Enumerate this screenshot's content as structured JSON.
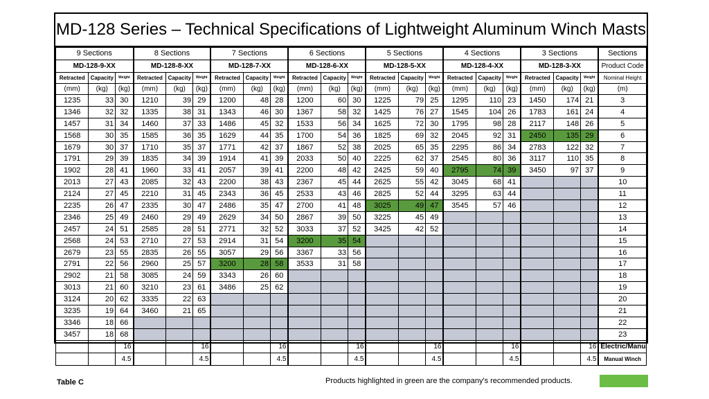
{
  "title": "MD-128 Series – Technical Specifications of Lightweight Aluminum Winch Masts",
  "groups": [
    {
      "label": "9 Sections",
      "code": "MD-128-9-XX"
    },
    {
      "label": "8 Sections",
      "code": "MD-128-8-XX"
    },
    {
      "label": "7 Sections",
      "code": "MD-128-7-XX"
    },
    {
      "label": "6 Sections",
      "code": "MD-128-6-XX"
    },
    {
      "label": "5 Sections",
      "code": "MD-128-5-XX"
    },
    {
      "label": "4 Sections",
      "code": "MD-128-4-XX"
    },
    {
      "label": "3 Sections",
      "code": "MD-128-3-XX"
    }
  ],
  "sub_headers": {
    "retracted": "Retracted",
    "capacity": "Capacity",
    "weight": "Weight"
  },
  "units": {
    "retracted": "(mm)",
    "capacity": "(kg)",
    "weight": "(kg)"
  },
  "right_column": {
    "sections": "Sections",
    "product_code": "Product Code",
    "nominal_height": "Nominal Height",
    "unit": "(m)"
  },
  "heights": [
    "3",
    "4",
    "5",
    "6",
    "7",
    "8",
    "9",
    "10",
    "11",
    "12",
    "13",
    "14",
    "15",
    "16",
    "17",
    "18",
    "19",
    "20",
    "21",
    "22",
    "23"
  ],
  "data": [
    [
      [
        "1235",
        "33",
        "30"
      ],
      [
        "1346",
        "32",
        "32"
      ],
      [
        "1457",
        "31",
        "34"
      ],
      [
        "1568",
        "30",
        "35"
      ],
      [
        "1679",
        "30",
        "37"
      ],
      [
        "1791",
        "29",
        "39"
      ],
      [
        "1902",
        "28",
        "41"
      ],
      [
        "2013",
        "27",
        "43"
      ],
      [
        "2124",
        "27",
        "45"
      ],
      [
        "2235",
        "26",
        "47"
      ],
      [
        "2346",
        "25",
        "49"
      ],
      [
        "2457",
        "24",
        "51"
      ],
      [
        "2568",
        "24",
        "53"
      ],
      [
        "2679",
        "23",
        "55"
      ],
      [
        "2791",
        "22",
        "56"
      ],
      [
        "2902",
        "21",
        "58"
      ],
      [
        "3013",
        "21",
        "60"
      ],
      [
        "3124",
        "20",
        "62"
      ],
      [
        "3235",
        "19",
        "64"
      ],
      [
        "3346",
        "18",
        "66"
      ],
      [
        "3457",
        "18",
        "68"
      ]
    ],
    [
      [
        "1210",
        "39",
        "29"
      ],
      [
        "1335",
        "38",
        "31"
      ],
      [
        "1460",
        "37",
        "33"
      ],
      [
        "1585",
        "36",
        "35"
      ],
      [
        "1710",
        "35",
        "37"
      ],
      [
        "1835",
        "34",
        "39"
      ],
      [
        "1960",
        "33",
        "41"
      ],
      [
        "2085",
        "32",
        "43"
      ],
      [
        "2210",
        "31",
        "45"
      ],
      [
        "2335",
        "30",
        "47"
      ],
      [
        "2460",
        "29",
        "49"
      ],
      [
        "2585",
        "28",
        "51"
      ],
      [
        "2710",
        "27",
        "53"
      ],
      [
        "2835",
        "26",
        "55"
      ],
      [
        "2960",
        "25",
        "57"
      ],
      [
        "3085",
        "24",
        "59"
      ],
      [
        "3210",
        "23",
        "61"
      ],
      [
        "3335",
        "22",
        "63"
      ],
      [
        "3460",
        "21",
        "65"
      ]
    ],
    [
      [
        "1200",
        "48",
        "28"
      ],
      [
        "1343",
        "46",
        "30"
      ],
      [
        "1486",
        "45",
        "32"
      ],
      [
        "1629",
        "44",
        "35"
      ],
      [
        "1771",
        "42",
        "37"
      ],
      [
        "1914",
        "41",
        "39"
      ],
      [
        "2057",
        "39",
        "41"
      ],
      [
        "2200",
        "38",
        "43"
      ],
      [
        "2343",
        "36",
        "45"
      ],
      [
        "2486",
        "35",
        "47"
      ],
      [
        "2629",
        "34",
        "50"
      ],
      [
        "2771",
        "32",
        "52"
      ],
      [
        "2914",
        "31",
        "54"
      ],
      [
        "3057",
        "29",
        "56"
      ],
      [
        "3200",
        "28",
        "58"
      ],
      [
        "3343",
        "26",
        "60"
      ],
      [
        "3486",
        "25",
        "62"
      ]
    ],
    [
      [
        "1200",
        "60",
        "30"
      ],
      [
        "1367",
        "58",
        "32"
      ],
      [
        "1533",
        "56",
        "34"
      ],
      [
        "1700",
        "54",
        "36"
      ],
      [
        "1867",
        "52",
        "38"
      ],
      [
        "2033",
        "50",
        "40"
      ],
      [
        "2200",
        "48",
        "42"
      ],
      [
        "2367",
        "45",
        "44"
      ],
      [
        "2533",
        "43",
        "46"
      ],
      [
        "2700",
        "41",
        "48"
      ],
      [
        "2867",
        "39",
        "50"
      ],
      [
        "3033",
        "37",
        "52"
      ],
      [
        "3200",
        "35",
        "54"
      ],
      [
        "3367",
        "33",
        "56"
      ],
      [
        "3533",
        "31",
        "58"
      ]
    ],
    [
      [
        "1225",
        "79",
        "25"
      ],
      [
        "1425",
        "76",
        "27"
      ],
      [
        "1625",
        "72",
        "30"
      ],
      [
        "1825",
        "69",
        "32"
      ],
      [
        "2025",
        "65",
        "35"
      ],
      [
        "2225",
        "62",
        "37"
      ],
      [
        "2425",
        "59",
        "40"
      ],
      [
        "2625",
        "55",
        "42"
      ],
      [
        "2825",
        "52",
        "44"
      ],
      [
        "3025",
        "49",
        "47"
      ],
      [
        "3225",
        "45",
        "49"
      ],
      [
        "3425",
        "42",
        "52"
      ]
    ],
    [
      [
        "1295",
        "110",
        "23"
      ],
      [
        "1545",
        "104",
        "26"
      ],
      [
        "1795",
        "98",
        "28"
      ],
      [
        "2045",
        "92",
        "31"
      ],
      [
        "2295",
        "86",
        "34"
      ],
      [
        "2545",
        "80",
        "36"
      ],
      [
        "2795",
        "74",
        "39"
      ],
      [
        "3045",
        "68",
        "41"
      ],
      [
        "3295",
        "63",
        "44"
      ],
      [
        "3545",
        "57",
        "46"
      ]
    ],
    [
      [
        "1450",
        "174",
        "21"
      ],
      [
        "1783",
        "161",
        "24"
      ],
      [
        "2117",
        "148",
        "26"
      ],
      [
        "2450",
        "135",
        "29"
      ],
      [
        "2783",
        "122",
        "32"
      ],
      [
        "3117",
        "110",
        "35"
      ],
      [
        "3450",
        "97",
        "37"
      ]
    ]
  ],
  "highlight_rows": [
    null,
    null,
    14,
    12,
    9,
    6,
    3
  ],
  "footer": {
    "electric_value": "16",
    "manual_value": "4.5",
    "electric_label": "Electric/Manual Winch",
    "manual_label": "Manual Winch"
  },
  "caption": "Table C",
  "note": "Products highlighted in green are the company's recommended products.",
  "colors": {
    "highlight": "#5a9a3e",
    "empty": "#c5c9d6",
    "note_swatch": "#6cbd45"
  }
}
